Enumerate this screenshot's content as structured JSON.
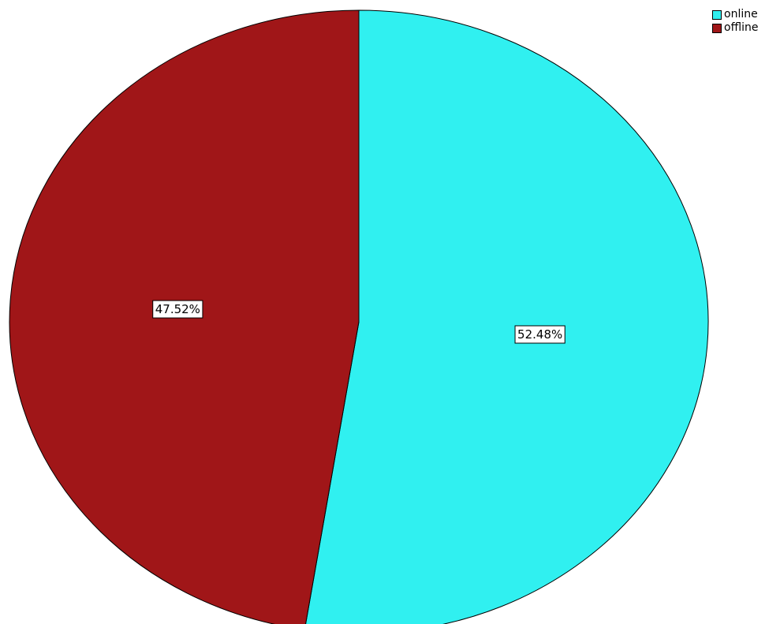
{
  "chart_data": {
    "type": "pie",
    "title": "",
    "start_angle_deg": 0,
    "direction": "clockwise",
    "legend_position": "top-right",
    "slices": [
      {
        "label": "online",
        "value": 52.48,
        "value_label": "52.48%",
        "color": "#30F0F0"
      },
      {
        "label": "offline",
        "value": 47.52,
        "value_label": "47.52%",
        "color": "#A01618"
      }
    ]
  }
}
